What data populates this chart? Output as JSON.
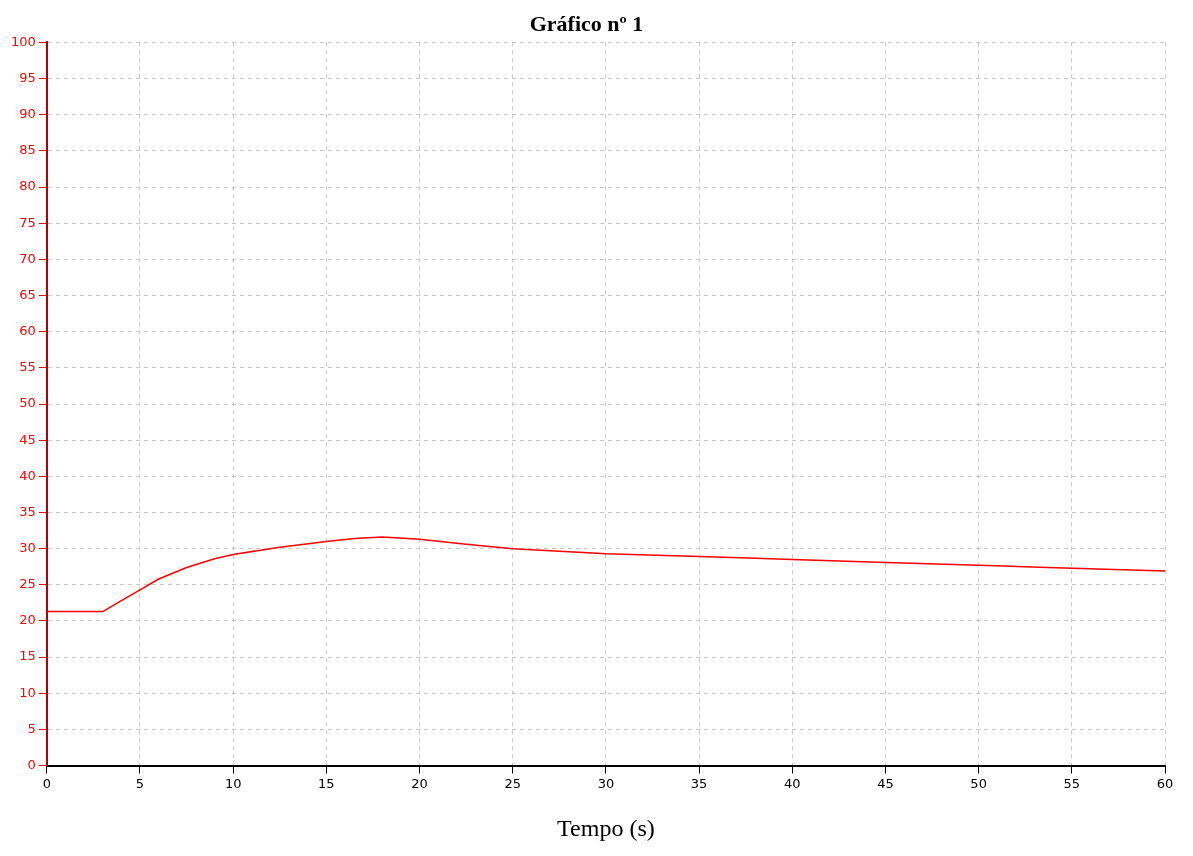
{
  "chart_data": {
    "type": "line",
    "title": "Gráfico nº 1",
    "xlabel": "Tempo (s)",
    "x": [
      0,
      3,
      4,
      5,
      6,
      7.5,
      9,
      10,
      12.5,
      15,
      16.5,
      18,
      20,
      22.5,
      25,
      30,
      35,
      40,
      45,
      50,
      55,
      60
    ],
    "series": [
      {
        "color": "#ff0000",
        "values": [
          21.3,
          21.3,
          22.8,
          24.3,
          25.8,
          27.4,
          28.6,
          29.2,
          30.2,
          31.0,
          31.4,
          31.6,
          31.3,
          30.6,
          30.0,
          29.3,
          28.9,
          28.5,
          28.1,
          27.7,
          27.3,
          26.9
        ]
      }
    ],
    "xlim": [
      0,
      60
    ],
    "xticks": [
      0,
      5,
      10,
      15,
      20,
      25,
      30,
      35,
      40,
      45,
      50,
      55,
      60
    ],
    "ylim": [
      0,
      100
    ],
    "yticks": [
      0,
      5,
      10,
      15,
      20,
      25,
      30,
      35,
      40,
      45,
      50,
      55,
      60,
      65,
      70,
      75,
      80,
      85,
      90,
      95,
      100
    ],
    "grid": true,
    "legend": false,
    "marker": "none",
    "line_style": "solid"
  }
}
